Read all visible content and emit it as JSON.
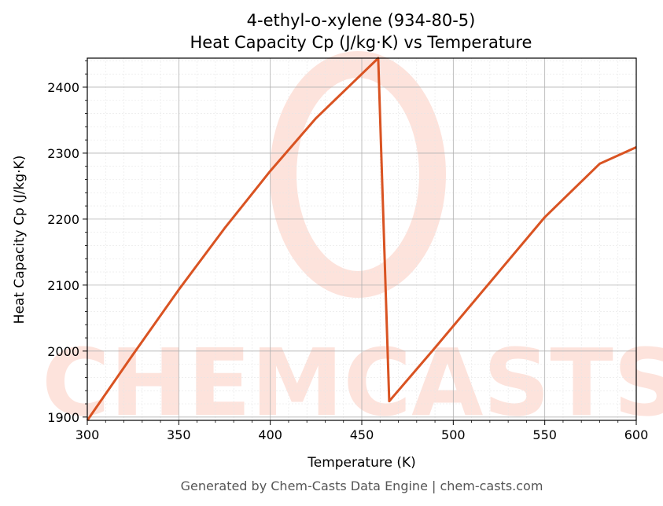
{
  "chart_data": {
    "type": "line",
    "title": "4-ethyl-o-xylene (934-80-5)",
    "subtitle": "Heat Capacity Cp (J/kg·K) vs Temperature",
    "xlabel": "Temperature (K)",
    "ylabel": "Heat Capacity Cp (J/kg·K)",
    "xlim": [
      300,
      600
    ],
    "ylim": [
      1895,
      2444
    ],
    "xticks": [
      300,
      350,
      400,
      450,
      500,
      550,
      600
    ],
    "yticks": [
      1900,
      2000,
      2100,
      2200,
      2300,
      2400
    ],
    "grid": true,
    "series": [
      {
        "color": "#d95322",
        "x": [
          300,
          325,
          350,
          375,
          400,
          425,
          450,
          459,
          465,
          490,
          520,
          550,
          580,
          600
        ],
        "y": [
          1895,
          1995,
          2093,
          2186,
          2273,
          2353,
          2420,
          2444,
          1924,
          2005,
          2104,
          2203,
          2284,
          2309
        ]
      }
    ]
  },
  "watermark": {
    "text": "CHEMCASTS",
    "color": "#fde3dc"
  },
  "footer": "Generated by Chem-Casts Data Engine | chem-casts.com"
}
